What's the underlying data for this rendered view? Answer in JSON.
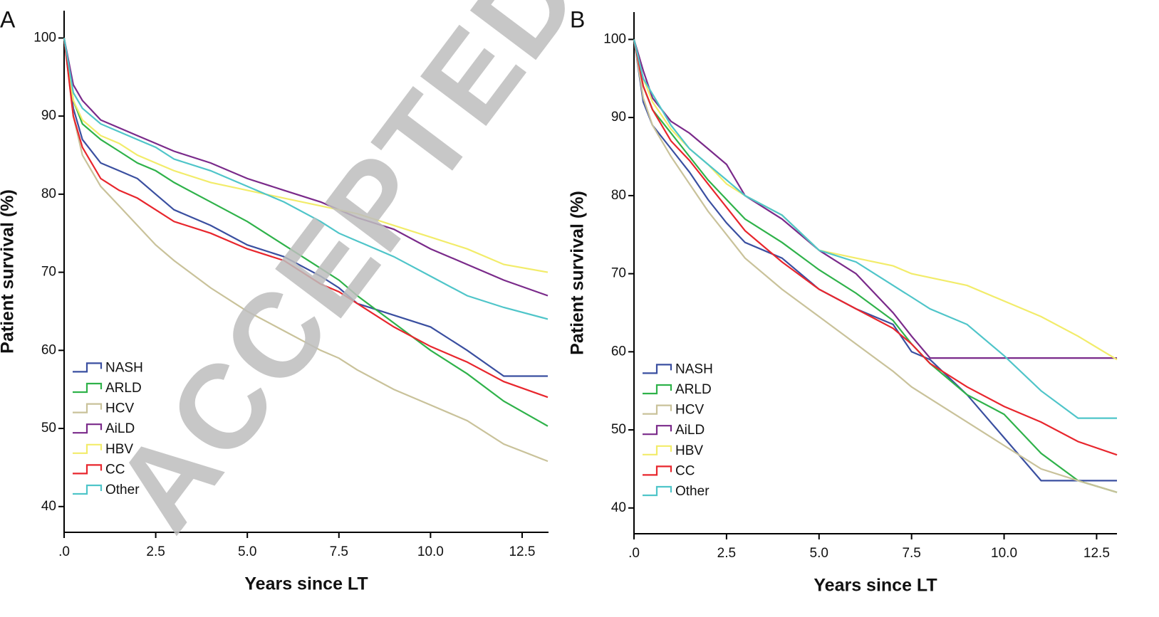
{
  "chart_data": [
    {
      "type": "line",
      "panel": "A",
      "xlabel": "Years since LT",
      "ylabel": "Patient survival (%)",
      "x": [
        0,
        0.25,
        0.5,
        1,
        1.5,
        2,
        2.5,
        3,
        4,
        5,
        6,
        7,
        7.5,
        8,
        9,
        10,
        11,
        12,
        13.2
      ],
      "xlim": [
        0,
        13.22
      ],
      "ylim": [
        36.7,
        103.5
      ],
      "xticks": [
        {
          "value": 0,
          "label": ".0"
        },
        2.5,
        {
          "value": 5,
          "label": "5.0"
        },
        7.5,
        {
          "value": 10,
          "label": "10.0"
        },
        12.5
      ],
      "yticks": [
        40,
        50,
        60,
        70,
        80,
        90,
        100
      ],
      "legend": "lower left",
      "series": [
        {
          "name": "NASH",
          "color": "#3a4fa0",
          "values": [
            100,
            91,
            87,
            84,
            83,
            82,
            80,
            78,
            76,
            73.5,
            72,
            69.5,
            68,
            66,
            64.5,
            63,
            60,
            56.7,
            56.7
          ]
        },
        {
          "name": "ARLD",
          "color": "#2fb24a",
          "values": [
            100,
            92,
            89,
            87,
            85.5,
            84,
            83,
            81.5,
            79,
            76.5,
            73.5,
            70.5,
            69,
            67,
            63.5,
            60,
            57,
            53.5,
            50.3
          ]
        },
        {
          "name": "HCV",
          "color": "#c9c29a",
          "values": [
            100,
            90,
            85,
            81,
            78.5,
            76,
            73.5,
            71.5,
            68,
            65,
            62.5,
            60,
            59,
            57.5,
            55,
            53,
            51,
            48,
            45.8
          ]
        },
        {
          "name": "AiLD",
          "color": "#7a2a8a",
          "values": [
            100,
            94,
            92,
            89.5,
            88.5,
            87.5,
            86.5,
            85.5,
            84,
            82,
            80.5,
            79,
            78,
            77,
            75.5,
            73,
            71,
            69,
            67
          ]
        },
        {
          "name": "HBV",
          "color": "#f2ec6a",
          "values": [
            100,
            92,
            89.5,
            87.5,
            86.5,
            85,
            84,
            83,
            81.5,
            80.5,
            79.5,
            78.5,
            78,
            77.5,
            76,
            74.5,
            73,
            71,
            70
          ]
        },
        {
          "name": "CC",
          "color": "#e8262d",
          "values": [
            100,
            90,
            86,
            82,
            80.5,
            79.5,
            78,
            76.5,
            75,
            73,
            71.5,
            68.5,
            67.5,
            66,
            63,
            60.5,
            58.5,
            56,
            54
          ]
        },
        {
          "name": "Other",
          "color": "#4fc5c9",
          "values": [
            100,
            93,
            91,
            89,
            88,
            87,
            86,
            84.5,
            83,
            81,
            79,
            76.5,
            75,
            74,
            72,
            69.5,
            67,
            65.5,
            64
          ]
        }
      ]
    },
    {
      "type": "line",
      "panel": "B",
      "xlabel": "Years since LT",
      "ylabel": "Patient survival (%)",
      "x": [
        0,
        0.25,
        0.5,
        1,
        1.5,
        2,
        2.5,
        3,
        4,
        5,
        6,
        7,
        7.5,
        8,
        9,
        10,
        11,
        12,
        13.05
      ],
      "xlim": [
        0,
        13.05
      ],
      "ylim": [
        36.7,
        103.5
      ],
      "xticks": [
        {
          "value": 0,
          "label": ".0"
        },
        2.5,
        {
          "value": 5,
          "label": "5.0"
        },
        7.5,
        {
          "value": 10,
          "label": "10.0"
        },
        12.5
      ],
      "yticks": [
        40,
        50,
        60,
        70,
        80,
        90,
        100
      ],
      "legend": "lower left",
      "series": [
        {
          "name": "NASH",
          "color": "#3a4fa0",
          "values": [
            100,
            92,
            89,
            86,
            83,
            79.5,
            76.5,
            74,
            72,
            68,
            65.5,
            63.5,
            60,
            59,
            54.5,
            49,
            43.5,
            43.5,
            43.5
          ]
        },
        {
          "name": "ARLD",
          "color": "#2fb24a",
          "values": [
            100,
            94,
            91,
            88,
            85,
            82,
            79.5,
            77,
            74,
            70.5,
            67.5,
            64,
            61,
            58.5,
            54.5,
            52,
            47,
            43.5,
            42
          ]
        },
        {
          "name": "HCV",
          "color": "#c9c29a",
          "values": [
            100,
            92.5,
            89,
            85,
            81.5,
            78,
            75,
            72,
            68,
            64.5,
            61,
            57.5,
            55.5,
            54,
            51,
            48,
            45,
            43.5,
            42
          ]
        },
        {
          "name": "AiLD",
          "color": "#7a2a8a",
          "values": [
            100,
            96,
            92.5,
            89.5,
            88,
            86,
            84,
            80,
            77,
            73,
            70,
            65,
            62,
            59.2,
            59.2,
            59.2,
            59.2,
            59.2,
            59.2
          ]
        },
        {
          "name": "HBV",
          "color": "#f2ec6a",
          "values": [
            100,
            95,
            92,
            88.5,
            86,
            84,
            81.5,
            80,
            77.5,
            73,
            72,
            71,
            70,
            69.5,
            68.5,
            66.5,
            64.5,
            62,
            59
          ]
        },
        {
          "name": "CC",
          "color": "#e8262d",
          "values": [
            100,
            94,
            91,
            87,
            84.5,
            81.5,
            78.5,
            75.5,
            71.5,
            68,
            65.5,
            63,
            61,
            58.5,
            55.5,
            53,
            51,
            48.5,
            46.8
          ]
        },
        {
          "name": "Other",
          "color": "#4fc5c9",
          "values": [
            100,
            95,
            93,
            89,
            86,
            84,
            82,
            80,
            77.5,
            73,
            71.5,
            68.5,
            67,
            65.5,
            63.5,
            59.5,
            55,
            51.5,
            51.5
          ]
        }
      ]
    }
  ],
  "watermark": "ACCEPTED MANUSCRIPT"
}
